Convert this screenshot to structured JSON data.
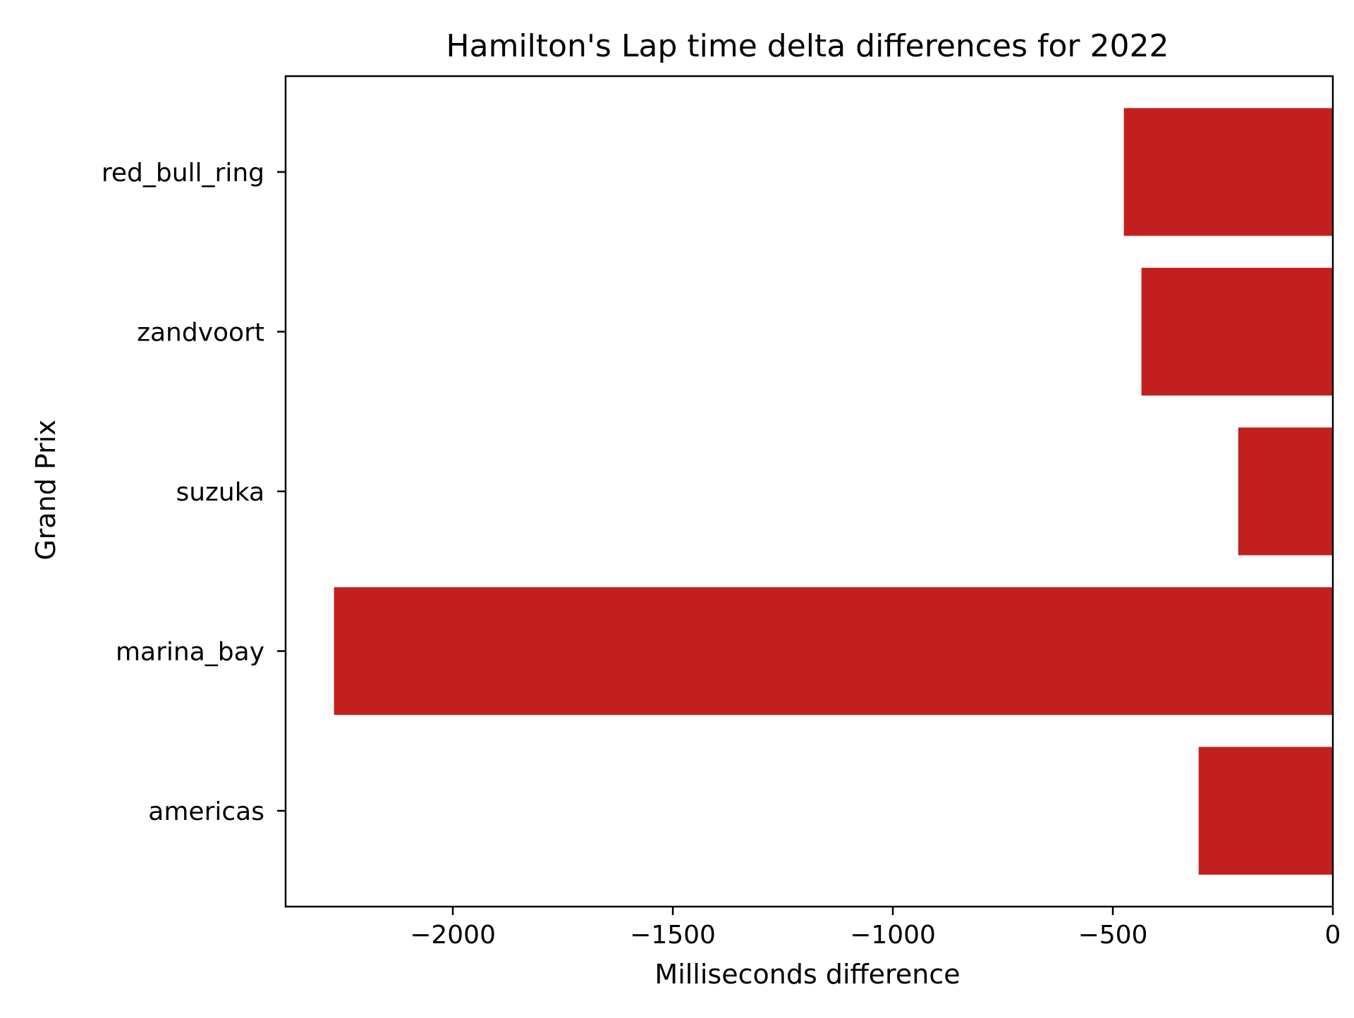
{
  "chart_data": {
    "type": "bar",
    "orientation": "horizontal",
    "title": "Hamilton's Lap time delta differences for 2022",
    "xlabel": "Milliseconds difference",
    "ylabel": "Grand Prix",
    "categories": [
      "red_bull_ring",
      "zandvoort",
      "suzuka",
      "marina_bay",
      "americas"
    ],
    "values": [
      -475,
      -435,
      -215,
      -2270,
      -305
    ],
    "xlim": [
      -2380,
      0
    ],
    "xticks": [
      -2000,
      -1500,
      -1000,
      -500,
      0
    ],
    "xtick_labels": [
      "−2000",
      "−1500",
      "−1000",
      "−500",
      "0"
    ],
    "bar_color": "#c2201e",
    "grid": false
  }
}
